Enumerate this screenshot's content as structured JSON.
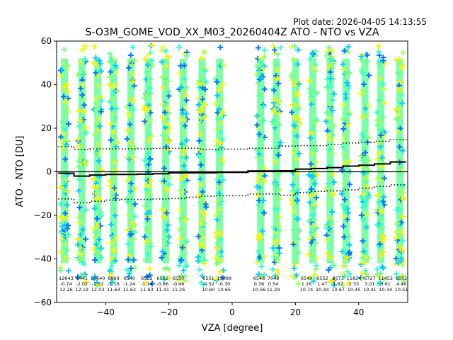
{
  "chart_data": {
    "type": "scatter",
    "title": "S-O3M_GOME_VOD_XX_M03_20260404Z ATO - NTO vs VZA",
    "plot_date": "Plot date: 2026-04-05 14:13:55",
    "xlabel": "VZA [degree]",
    "ylabel": "ATO - NTO [DU]",
    "xlim": [
      -55.5,
      55.5
    ],
    "ylim": [
      -60,
      60
    ],
    "xticks": [
      -40,
      -20,
      0,
      20,
      40
    ],
    "yticks": [
      -60,
      -40,
      -20,
      0,
      20,
      40,
      60
    ],
    "grid": false,
    "columns_x": [
      -53,
      -47.5,
      -42.5,
      -37.5,
      -32,
      -26.5,
      -21,
      -15.5,
      -9.5,
      -4,
      9,
      14,
      20,
      25.5,
      31,
      36,
      42,
      47,
      53
    ],
    "bins": [
      {
        "x": -52.5,
        "count": "12643",
        "mean": "-0.74",
        "std": "12.26"
      },
      {
        "x": -47.5,
        "count": "6441",
        "mean": "-2.02",
        "std": "12.19"
      },
      {
        "x": -42.5,
        "count": "10640",
        "mean": "-1.51",
        "std": "12.03"
      },
      {
        "x": -37.5,
        "count": "8869",
        "mean": "-1.16",
        "std": "11.63"
      },
      {
        "x": -32.5,
        "count": "6540",
        "mean": "-1.24",
        "std": "11.62"
      },
      {
        "x": -27.0,
        "count": "6552",
        "mean": "-1.14",
        "std": "11.63"
      },
      {
        "x": -22.0,
        "count": "6552",
        "mean": "-0.86",
        "std": "11.41"
      },
      {
        "x": -17.0,
        "count": "6550",
        "mean": "-0.46",
        "std": "11.26"
      },
      {
        "x": -7.5,
        "count": "6551",
        "mean": "-0.52",
        "std": "10.60"
      },
      {
        "x": -2.5,
        "count": "13099",
        "mean": "-0.30",
        "std": "10.65"
      },
      {
        "x": 8.5,
        "count": "6548",
        "mean": "0.36",
        "std": "10.56"
      },
      {
        "x": 13.0,
        "count": "7048",
        "mean": "0.54",
        "std": "11.29"
      },
      {
        "x": 23.5,
        "count": "6549",
        "mean": "1.16",
        "std": "10.74"
      },
      {
        "x": 28.5,
        "count": "6552",
        "mean": "1.47",
        "std": "10.44"
      },
      {
        "x": 33.5,
        "count": "8573",
        "mean": "1.87",
        "std": "10.67"
      },
      {
        "x": 38.5,
        "count": "11824",
        "mean": "2.55",
        "std": "10.45"
      },
      {
        "x": 43.5,
        "count": "6727",
        "mean": "3.01",
        "std": "10.41"
      },
      {
        "x": 48.5,
        "count": "11452",
        "mean": "3.61",
        "std": "10.34"
      },
      {
        "x": 53.5,
        "count": "6552",
        "mean": "4.46",
        "std": "10.51"
      }
    ],
    "mean_line": [
      [
        -55,
        -0.7
      ],
      [
        -50,
        -2.0
      ],
      [
        -45,
        -1.5
      ],
      [
        -40,
        -1.2
      ],
      [
        -35,
        -1.2
      ],
      [
        -30,
        -1.1
      ],
      [
        -25,
        -0.9
      ],
      [
        -20,
        -0.5
      ],
      [
        -15,
        -0.5
      ],
      [
        -10,
        -0.5
      ],
      [
        -5,
        -0.3
      ],
      [
        0,
        -0.3
      ],
      [
        5,
        0.4
      ],
      [
        10,
        0.4
      ],
      [
        15,
        0.5
      ],
      [
        20,
        1.2
      ],
      [
        25,
        1.5
      ],
      [
        30,
        1.9
      ],
      [
        35,
        2.6
      ],
      [
        40,
        3.0
      ],
      [
        45,
        3.6
      ],
      [
        50,
        4.5
      ],
      [
        55,
        4.5
      ]
    ],
    "upper_dotted": [
      [
        -55,
        11.5
      ],
      [
        -50,
        10.2
      ],
      [
        -45,
        10.5
      ],
      [
        -40,
        10.5
      ],
      [
        -35,
        10.5
      ],
      [
        -30,
        10.5
      ],
      [
        -25,
        10.7
      ],
      [
        -20,
        10.8
      ],
      [
        -15,
        10.8
      ],
      [
        -10,
        10.2
      ],
      [
        -5,
        10.4
      ],
      [
        0,
        10.4
      ],
      [
        5,
        10.8
      ],
      [
        10,
        10.8
      ],
      [
        15,
        11.8
      ],
      [
        20,
        12.0
      ],
      [
        25,
        12.0
      ],
      [
        30,
        12.6
      ],
      [
        35,
        13.2
      ],
      [
        40,
        13.5
      ],
      [
        45,
        14.0
      ],
      [
        50,
        14.8
      ],
      [
        55,
        15.0
      ]
    ],
    "lower_dotted": [
      [
        -55,
        -12.5
      ],
      [
        -50,
        -14.2
      ],
      [
        -45,
        -13.5
      ],
      [
        -40,
        -13.0
      ],
      [
        -35,
        -12.7
      ],
      [
        -30,
        -12.7
      ],
      [
        -25,
        -12.5
      ],
      [
        -20,
        -12.3
      ],
      [
        -15,
        -11.7
      ],
      [
        -10,
        -11.2
      ],
      [
        -5,
        -11.0
      ],
      [
        0,
        -11.0
      ],
      [
        5,
        -10.2
      ],
      [
        10,
        -10.2
      ],
      [
        15,
        -10.8
      ],
      [
        20,
        -9.6
      ],
      [
        25,
        -9.0
      ],
      [
        30,
        -8.8
      ],
      [
        35,
        -8.3
      ],
      [
        40,
        -7.5
      ],
      [
        45,
        -6.7
      ],
      [
        50,
        -6.0
      ],
      [
        55,
        -6.0
      ]
    ],
    "marker_colors": [
      "#66ff99",
      "#33ffcc",
      "#00ccff",
      "#0077ff",
      "#ddff33",
      "#ffee00",
      "#99ff66"
    ],
    "line_color": "#000000"
  }
}
